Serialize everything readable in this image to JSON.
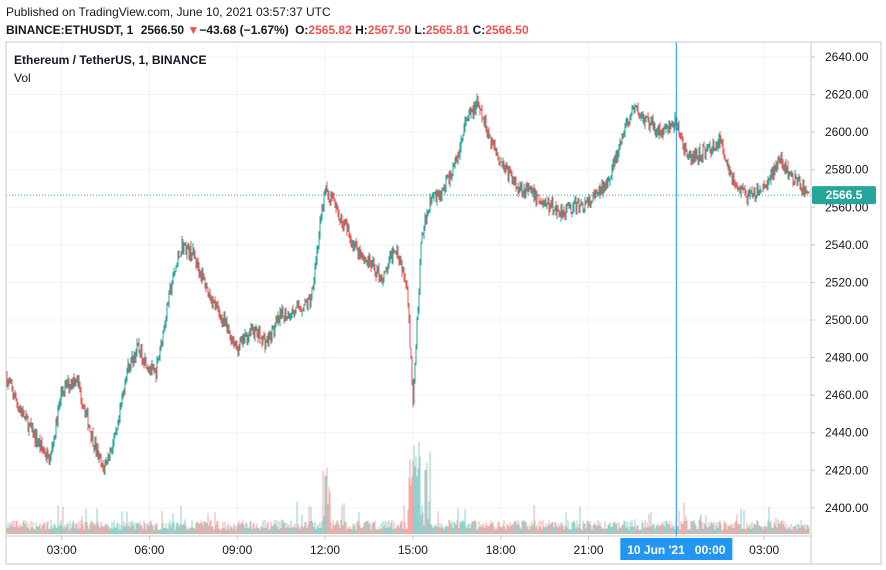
{
  "header": {
    "published": "Published on TradingView.com, June 10, 2021 03:57:37 UTC",
    "symbol": "BINANCE:ETHUSDT, 1",
    "last": "2566.50",
    "arrow": "▼",
    "change": "−43.68 (−1.67%)",
    "o_label": "O:",
    "o": "2565.82",
    "h_label": "H:",
    "h": "2567.50",
    "l_label": "L:",
    "l": "2565.81",
    "c_label": "C:",
    "c": "2566.50"
  },
  "legend": {
    "title": "Ethereum / TetherUS, 1, BINANCE",
    "vol": "Vol"
  },
  "colors": {
    "up": "#26a69a",
    "down": "#ef5350",
    "cursor": "#2196f3",
    "price_line": "#26a69a"
  },
  "chart_data": {
    "type": "candlestick",
    "title": "Ethereum / TetherUS, 1, BINANCE",
    "interval": "1 minute",
    "ylim": [
      2385,
      2648
    ],
    "y_ticks": [
      2400,
      2420,
      2440,
      2460,
      2480,
      2500,
      2520,
      2540,
      2560,
      2580,
      2600,
      2620,
      2640
    ],
    "x_ticks": [
      "03:00",
      "06:00",
      "09:00",
      "12:00",
      "15:00",
      "18:00",
      "21:00",
      "00:00",
      "03:00"
    ],
    "x_tick_hours": [
      3,
      6,
      9,
      12,
      15,
      18,
      21,
      24,
      27
    ],
    "x_range_hours": [
      1.1,
      28.6
    ],
    "cursor": {
      "label": "10 Jun '21   00:00",
      "hour": 24
    },
    "last_price": 2566.5,
    "price_path": [
      [
        1.1,
        2470
      ],
      [
        1.5,
        2455
      ],
      [
        2.0,
        2440
      ],
      [
        2.6,
        2425
      ],
      [
        3.0,
        2462
      ],
      [
        3.5,
        2470
      ],
      [
        4.0,
        2440
      ],
      [
        4.4,
        2420
      ],
      [
        4.9,
        2440
      ],
      [
        5.2,
        2472
      ],
      [
        5.6,
        2485
      ],
      [
        6.2,
        2470
      ],
      [
        6.7,
        2515
      ],
      [
        7.1,
        2540
      ],
      [
        7.5,
        2535
      ],
      [
        8.0,
        2515
      ],
      [
        8.5,
        2500
      ],
      [
        9.0,
        2485
      ],
      [
        9.5,
        2495
      ],
      [
        10.0,
        2488
      ],
      [
        10.5,
        2502
      ],
      [
        11.0,
        2505
      ],
      [
        11.5,
        2510
      ],
      [
        12.0,
        2570
      ],
      [
        12.5,
        2555
      ],
      [
        13.0,
        2540
      ],
      [
        13.5,
        2530
      ],
      [
        14.0,
        2522
      ],
      [
        14.4,
        2540
      ],
      [
        14.8,
        2520
      ],
      [
        15.0,
        2455
      ],
      [
        15.3,
        2545
      ],
      [
        15.6,
        2565
      ],
      [
        16.0,
        2568
      ],
      [
        16.5,
        2585
      ],
      [
        16.8,
        2605
      ],
      [
        17.2,
        2615
      ],
      [
        17.6,
        2598
      ],
      [
        18.0,
        2585
      ],
      [
        18.5,
        2572
      ],
      [
        19.0,
        2568
      ],
      [
        19.5,
        2562
      ],
      [
        20.0,
        2558
      ],
      [
        20.5,
        2560
      ],
      [
        21.0,
        2562
      ],
      [
        21.5,
        2570
      ],
      [
        22.0,
        2588
      ],
      [
        22.3,
        2605
      ],
      [
        22.6,
        2612
      ],
      [
        23.0,
        2605
      ],
      [
        23.5,
        2600
      ],
      [
        24.0,
        2605
      ],
      [
        24.4,
        2585
      ],
      [
        25.0,
        2590
      ],
      [
        25.5,
        2595
      ],
      [
        26.0,
        2572
      ],
      [
        26.5,
        2565
      ],
      [
        27.0,
        2570
      ],
      [
        27.5,
        2585
      ],
      [
        28.0,
        2575
      ],
      [
        28.6,
        2566.5
      ]
    ]
  }
}
